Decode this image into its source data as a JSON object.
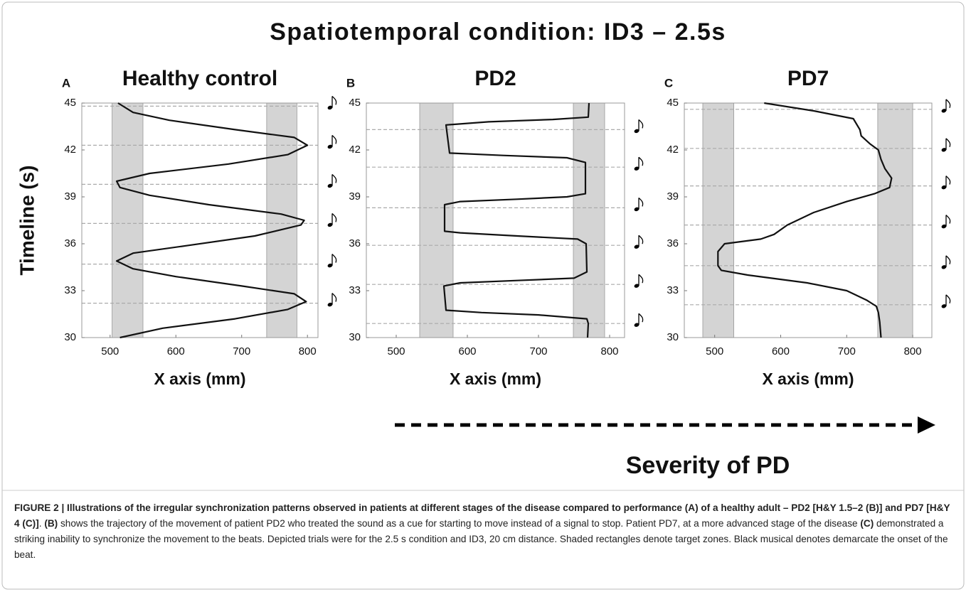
{
  "title": "Spatiotemporal condition: ID3 – 2.5s",
  "chart_data": [
    {
      "type": "line",
      "panel": "A",
      "title": "Healthy control",
      "x_label": "X axis (mm)",
      "y_label": "Timeline (s)",
      "xlim": [
        457,
        816
      ],
      "ylim": [
        30,
        45
      ],
      "xticks": [
        500,
        600,
        700,
        800
      ],
      "yticks": [
        30,
        33,
        36,
        39,
        42,
        45
      ],
      "target_zones": [
        [
          503,
          550
        ],
        [
          738,
          784
        ]
      ],
      "zone_color": "#d4d4d4",
      "beats": [
        44.8,
        42.3,
        39.8,
        37.3,
        34.7,
        32.2
      ],
      "series": [
        {
          "color": "#111111",
          "y": [
            30,
            30.6,
            31.2,
            31.8,
            32.3,
            32.8,
            33.3,
            33.9,
            34.4,
            34.9,
            35.4,
            35.9,
            36.5,
            37.2,
            37.5,
            37.9,
            38.5,
            39.1,
            39.6,
            40.0,
            40.5,
            41.1,
            41.7,
            42.3,
            42.8,
            43.3,
            43.9,
            44.4,
            45
          ],
          "x": [
            515,
            580,
            690,
            770,
            798,
            780,
            700,
            600,
            535,
            510,
            535,
            620,
            720,
            790,
            795,
            760,
            650,
            560,
            515,
            510,
            560,
            680,
            770,
            800,
            780,
            690,
            590,
            535,
            512
          ]
        }
      ]
    },
    {
      "type": "line",
      "panel": "B",
      "title": "PD2",
      "x_label": "X axis (mm)",
      "xlim": [
        458,
        821
      ],
      "ylim": [
        30,
        45
      ],
      "xticks": [
        500,
        600,
        700,
        800
      ],
      "yticks": [
        30,
        33,
        36,
        39,
        42,
        45
      ],
      "target_zones": [
        [
          533,
          580
        ],
        [
          749,
          793
        ]
      ],
      "zone_color": "#d4d4d4",
      "beats": [
        43.3,
        40.9,
        38.3,
        35.9,
        33.4,
        30.9
      ],
      "series": [
        {
          "color": "#111111",
          "y": [
            30,
            30.9,
            31.2,
            31.45,
            31.6,
            31.75,
            33.3,
            33.5,
            33.65,
            33.8,
            34.2,
            36.0,
            36.3,
            36.5,
            36.7,
            36.8,
            38.5,
            38.7,
            38.85,
            39.0,
            39.2,
            41.2,
            41.5,
            41.65,
            41.8,
            43.6,
            43.8,
            43.95,
            44.1,
            45
          ],
          "x": [
            769,
            770,
            768,
            700,
            620,
            570,
            567,
            590,
            670,
            750,
            768,
            767,
            755,
            670,
            590,
            568,
            568,
            590,
            670,
            740,
            766,
            766,
            740,
            650,
            575,
            570,
            630,
            720,
            770,
            771
          ]
        }
      ]
    },
    {
      "type": "line",
      "panel": "C",
      "title": "PD7",
      "x_label": "X axis (mm)",
      "xlim": [
        454,
        829
      ],
      "ylim": [
        30,
        45
      ],
      "xticks": [
        500,
        600,
        700,
        800
      ],
      "yticks": [
        30,
        33,
        36,
        39,
        42,
        45
      ],
      "target_zones": [
        [
          482,
          529
        ],
        [
          747,
          800
        ]
      ],
      "zone_color": "#d4d4d4",
      "beats": [
        44.6,
        42.1,
        39.7,
        37.2,
        34.6,
        32.1
      ],
      "series": [
        {
          "color": "#111111",
          "y": [
            30,
            31.0,
            31.6,
            32.0,
            32.4,
            33.0,
            33.5,
            34.0,
            34.3,
            34.6,
            35.5,
            36.0,
            36.3,
            36.6,
            37.2,
            38.0,
            38.7,
            39.2,
            39.6,
            40.2,
            40.8,
            41.4,
            42.0,
            42.4,
            42.9,
            43.3,
            44.0,
            44.5,
            45
          ],
          "x": [
            752,
            750,
            748,
            745,
            730,
            700,
            640,
            550,
            510,
            505,
            505,
            515,
            570,
            590,
            610,
            650,
            700,
            742,
            765,
            768,
            758,
            752,
            748,
            735,
            722,
            720,
            710,
            650,
            575
          ]
        }
      ]
    }
  ],
  "severity_label": "Severity of PD",
  "caption": [
    {
      "text": "FIGURE 2 | Illustrations of the irregular synchronization patterns observed in patients at different stages of the disease compared to performance (A) of a healthy adult – PD2 [H&Y 1.5–2 (B)] and PD7 [H&Y 4 (C)]",
      "bold": true
    },
    {
      "text": ". ",
      "bold": false
    },
    {
      "text": "(B)",
      "bold": true
    },
    {
      "text": " shows the trajectory of the movement of patient PD2 who treated the sound as a cue for starting to move instead of a signal to stop. Patient PD7, at a more advanced stage of the disease ",
      "bold": false
    },
    {
      "text": "(C)",
      "bold": true
    },
    {
      "text": " demonstrated a striking inability to synchronize the movement to the beats. Depicted trials were for the 2.5 s condition and ID3, 20 cm distance. Shaded rectangles denote target zones. Black musical denotes demarcate the onset of the beat.",
      "bold": false
    }
  ]
}
